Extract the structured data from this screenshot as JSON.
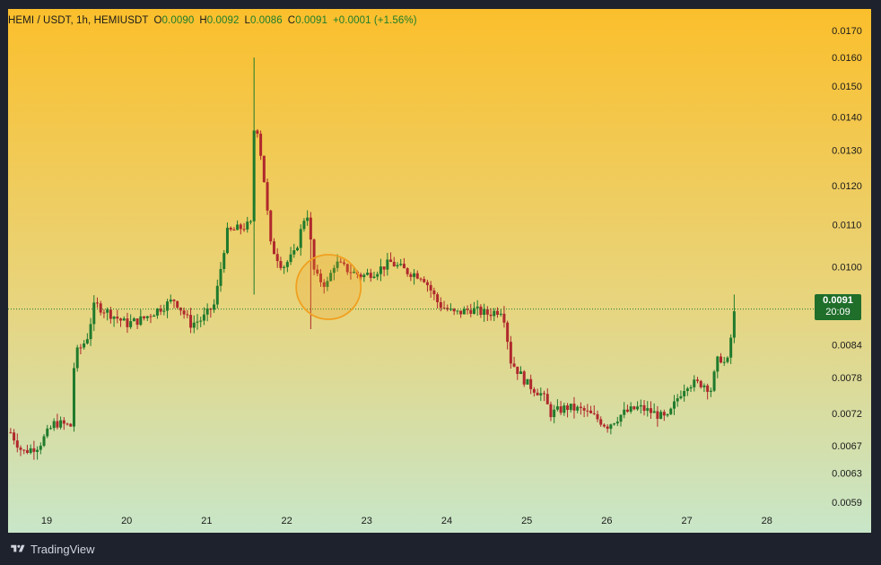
{
  "header": {
    "symbol": "HEMI / USDT, 1h, HEMIUSDT",
    "o_label": "O",
    "o_value": "0.0090",
    "h_label": "H",
    "h_value": "0.0092",
    "l_label": "L",
    "l_value": "0.0086",
    "c_label": "C",
    "c_value": "0.0091",
    "change": "+0.0001 (+1.56%)"
  },
  "price_badge": {
    "price": "0.0091",
    "countdown": "20:09"
  },
  "footer": {
    "brand": "TradingView"
  },
  "colors": {
    "up": "#1f7a2c",
    "down": "#b0282c",
    "bg_top": "#fbbf2c",
    "bg_bottom": "#c8e6c8",
    "badge": "#1f6e2a",
    "frame": "#1e222d",
    "highlight": "#f0a020"
  },
  "chart_data": {
    "type": "candlestick",
    "scale": "log",
    "symbol": "HEMI / USDT",
    "interval": "1h",
    "x_ticks": [
      "19",
      "20",
      "21",
      "22",
      "23",
      "24",
      "25",
      "26",
      "27",
      "28"
    ],
    "y_ticks": [
      "0.0170",
      "0.0160",
      "0.0150",
      "0.0140",
      "0.0130",
      "0.0120",
      "0.0110",
      "0.0100",
      "0.0084",
      "0.0078",
      "0.0072",
      "0.0067",
      "0.0063",
      "0.0059"
    ],
    "ylim": [
      0.0056,
      0.0176
    ],
    "xlim_days": [
      "18.55",
      "28.25"
    ],
    "last_price": 0.0091,
    "close_path": [
      [
        18.55,
        0.0069
      ],
      [
        18.7,
        0.0066
      ],
      [
        18.9,
        0.0067
      ],
      [
        19.1,
        0.00705
      ],
      [
        19.3,
        0.007
      ],
      [
        19.35,
        0.0082
      ],
      [
        19.5,
        0.0085
      ],
      [
        19.6,
        0.0092
      ],
      [
        19.8,
        0.009
      ],
      [
        20.0,
        0.0088
      ],
      [
        20.2,
        0.0089
      ],
      [
        20.4,
        0.0091
      ],
      [
        20.6,
        0.0093
      ],
      [
        20.8,
        0.0088
      ],
      [
        20.95,
        0.0089
      ],
      [
        21.1,
        0.0092
      ],
      [
        21.25,
        0.0108
      ],
      [
        21.4,
        0.0109
      ],
      [
        21.55,
        0.011
      ],
      [
        21.6,
        0.0142
      ],
      [
        21.7,
        0.0125
      ],
      [
        21.8,
        0.0105
      ],
      [
        21.95,
        0.01
      ],
      [
        22.1,
        0.0103
      ],
      [
        22.25,
        0.0114
      ],
      [
        22.35,
        0.0098
      ],
      [
        22.5,
        0.0096
      ],
      [
        22.6,
        0.0101
      ],
      [
        22.8,
        0.0099
      ],
      [
        22.95,
        0.0098
      ],
      [
        23.1,
        0.0099
      ],
      [
        23.3,
        0.0101
      ],
      [
        23.5,
        0.0099
      ],
      [
        23.7,
        0.0098
      ],
      [
        23.9,
        0.0092
      ],
      [
        24.1,
        0.009
      ],
      [
        24.3,
        0.0091
      ],
      [
        24.5,
        0.009
      ],
      [
        24.7,
        0.0091
      ],
      [
        24.8,
        0.0081
      ],
      [
        25.0,
        0.0077
      ],
      [
        25.2,
        0.0075
      ],
      [
        25.3,
        0.0072
      ],
      [
        25.5,
        0.0073
      ],
      [
        25.7,
        0.00725
      ],
      [
        25.9,
        0.0071
      ],
      [
        26.0,
        0.007
      ],
      [
        26.2,
        0.0072
      ],
      [
        26.4,
        0.0073
      ],
      [
        26.6,
        0.0072
      ],
      [
        26.75,
        0.0071
      ],
      [
        26.9,
        0.0075
      ],
      [
        27.0,
        0.0077
      ],
      [
        27.2,
        0.0077
      ],
      [
        27.3,
        0.0076
      ],
      [
        27.4,
        0.0082
      ],
      [
        27.5,
        0.008
      ],
      [
        27.6,
        0.0091
      ]
    ],
    "spikes": [
      {
        "day": 21.6,
        "high": 0.016
      },
      {
        "day": 21.6,
        "low": 0.0094
      },
      {
        "day": 22.3,
        "low": 0.0087
      },
      {
        "day": 27.6,
        "high": 0.0094
      }
    ],
    "annotation": {
      "shape": "circle",
      "day": 22.5,
      "price": 0.0096
    }
  }
}
